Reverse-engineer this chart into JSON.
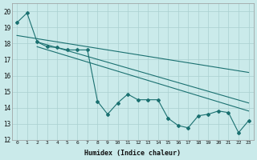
{
  "xlabel": "Humidex (Indice chaleur)",
  "background_color": "#caeaea",
  "grid_color": "#aad0d0",
  "line_color": "#1a7070",
  "xlim": [
    -0.5,
    23.5
  ],
  "ylim": [
    12,
    20.5
  ],
  "yticks": [
    12,
    13,
    14,
    15,
    16,
    17,
    18,
    19,
    20
  ],
  "xticks": [
    0,
    1,
    2,
    3,
    4,
    5,
    6,
    7,
    8,
    9,
    10,
    11,
    12,
    13,
    14,
    15,
    16,
    17,
    18,
    19,
    20,
    21,
    22,
    23
  ],
  "series1_x": [
    0,
    1,
    2,
    3,
    4,
    5,
    6,
    7,
    8,
    9,
    10,
    11,
    12,
    13,
    14,
    15,
    16,
    17,
    18,
    19,
    20,
    21,
    22,
    23
  ],
  "series1_y": [
    19.3,
    19.9,
    18.1,
    17.8,
    17.75,
    17.6,
    17.6,
    17.6,
    14.4,
    13.6,
    14.3,
    14.85,
    14.5,
    14.5,
    14.5,
    13.35,
    12.9,
    12.75,
    13.5,
    13.6,
    13.8,
    13.7,
    12.45,
    13.2
  ],
  "trend1_x": [
    0,
    23
  ],
  "trend1_y": [
    18.5,
    16.2
  ],
  "trend2_x": [
    2,
    23
  ],
  "trend2_y": [
    18.1,
    14.3
  ],
  "trend3_x": [
    2,
    23
  ],
  "trend3_y": [
    17.8,
    13.8
  ]
}
